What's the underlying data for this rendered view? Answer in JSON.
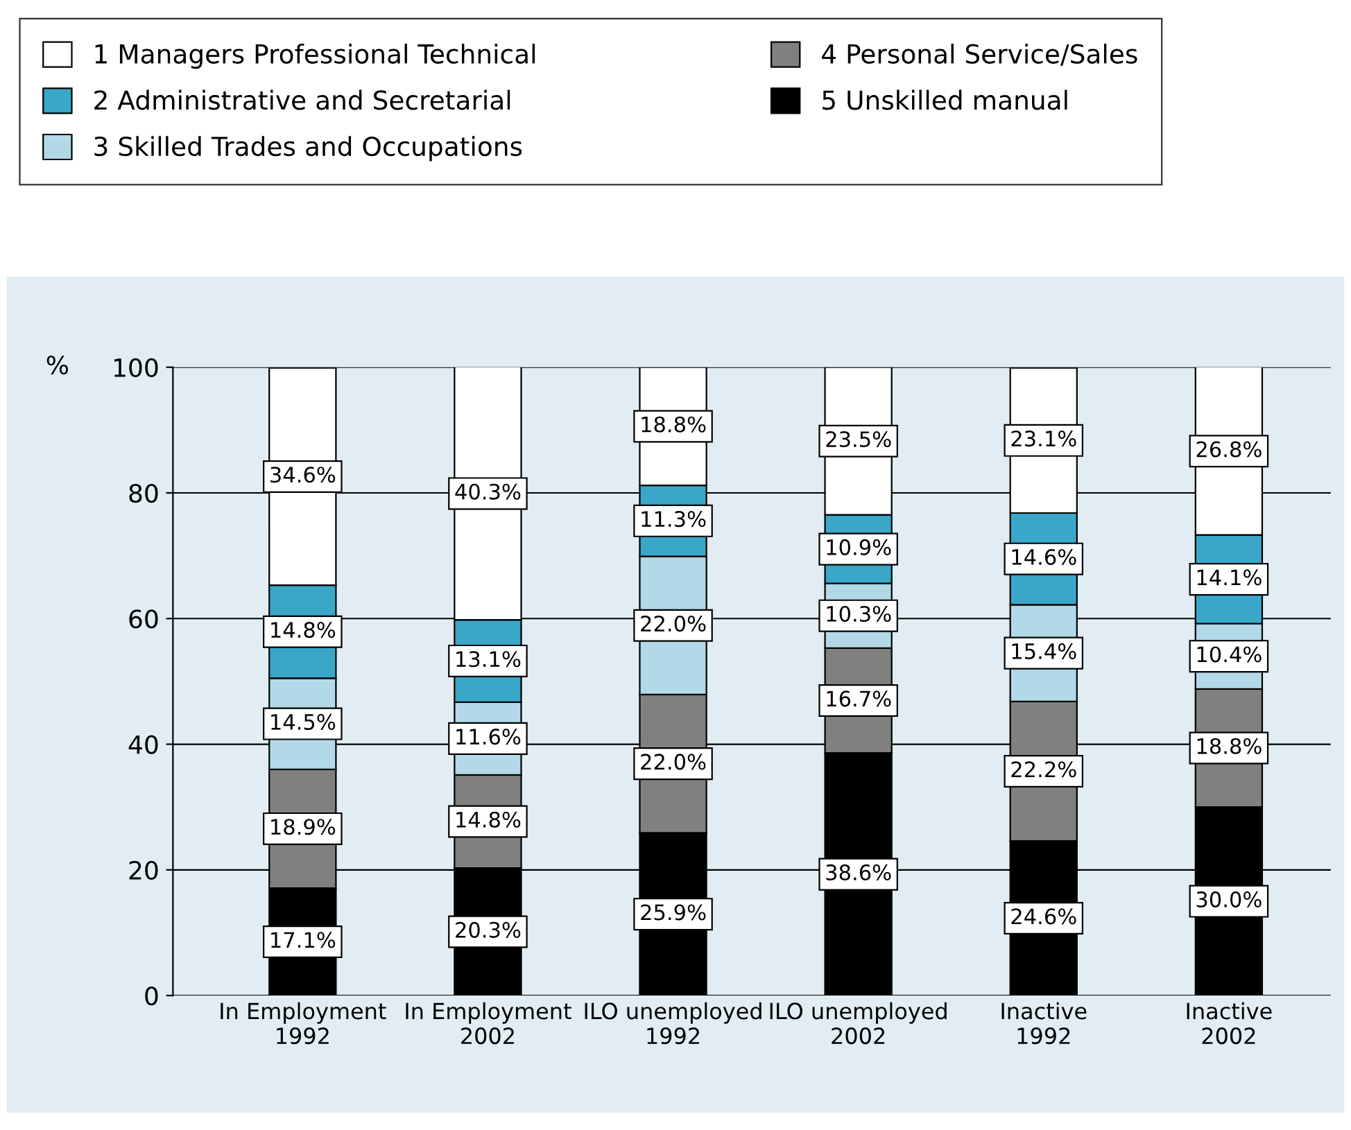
{
  "chart_data": {
    "type": "bar",
    "stacked": true,
    "legend": "top",
    "grid": "y",
    "ylabel": "%",
    "ylim": [
      0,
      100
    ],
    "yticks": [
      0,
      20,
      40,
      60,
      80,
      100
    ],
    "categories": [
      "In Employment\n1992",
      "In Employment\n2002",
      "ILO unemployed\n1992",
      "ILO unemployed\n2002",
      "Inactive\n1992",
      "Inactive\n2002"
    ],
    "series": [
      {
        "name": "5 Unskilled manual",
        "color": "#000000",
        "values": [
          17.1,
          20.3,
          25.9,
          38.6,
          24.6,
          30.0
        ],
        "value_labels": [
          "17.1%",
          "20.3%",
          "25.9%",
          "38.6%",
          "24.6%",
          "30.0%"
        ]
      },
      {
        "name": "4 Personal Service/Sales",
        "color": "#808080",
        "values": [
          18.9,
          14.8,
          22.0,
          16.7,
          22.2,
          18.8
        ],
        "value_labels": [
          "18.9%",
          "14.8%",
          "22.0%",
          "16.7%",
          "22.2%",
          "18.8%"
        ]
      },
      {
        "name": "3 Skilled Trades and Occupations",
        "color": "#b3d9e8",
        "values": [
          14.5,
          11.6,
          22.0,
          10.3,
          15.4,
          10.4
        ],
        "value_labels": [
          "14.5%",
          "11.6%",
          "22.0%",
          "10.3%",
          "15.4%",
          "10.4%"
        ]
      },
      {
        "name": "2 Administrative and Secretarial",
        "color": "#3aa7c9",
        "values": [
          14.8,
          13.1,
          11.3,
          10.9,
          14.6,
          14.1
        ],
        "value_labels": [
          "14.8%",
          "13.1%",
          "11.3%",
          "10.9%",
          "14.6%",
          "14.1%"
        ]
      },
      {
        "name": "1 Managers Professional Technical",
        "color": "#ffffff",
        "values": [
          34.6,
          40.3,
          18.8,
          23.5,
          23.1,
          26.8
        ],
        "value_labels": [
          "34.6%",
          "40.3%",
          "18.8%",
          "23.5%",
          "23.1%",
          "26.8%"
        ]
      }
    ]
  }
}
